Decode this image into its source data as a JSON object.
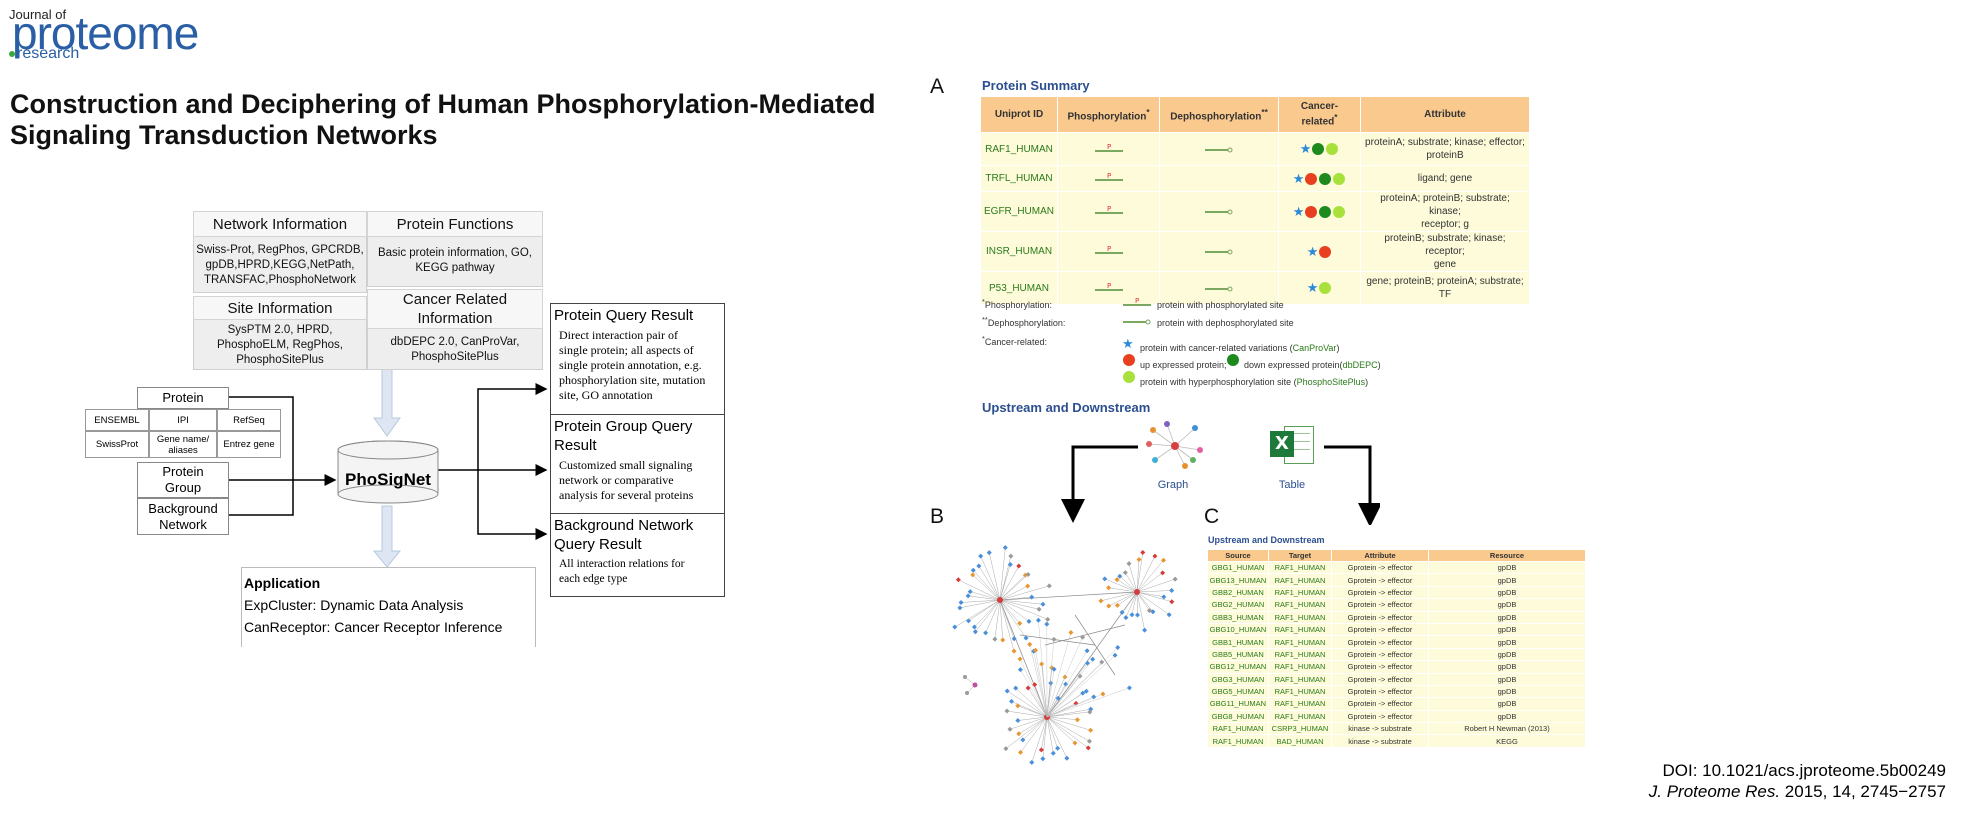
{
  "journal": {
    "top": "Journal of",
    "name": "proteome",
    "sub": "research"
  },
  "title_line1": "Construction and Deciphering of Human Phosphorylation-Mediated",
  "title_line2": "Signaling Transduction Networks",
  "doi_line": "DOI: 10.1021/acs.jproteome.5b00249",
  "citation": {
    "journal": "J. Proteome Res.",
    "rest": " 2015, 14, 2745−2757"
  },
  "diagram": {
    "network_info": {
      "title": "Network Information",
      "lines": [
        "Swiss-Prot, RegPhos, GPCRDB,",
        "gpDB,HPRD,KEGG,NetPath,",
        "TRANSFAC,PhosphoNetwork"
      ]
    },
    "protein_functions": {
      "title": "Protein Functions",
      "lines": [
        "Basic protein information, GO,",
        "KEGG pathway"
      ]
    },
    "site_info": {
      "title": "Site Information",
      "lines": [
        "SysPTM 2.0, HPRD,",
        "PhosphoELM, RegPhos,",
        "PhosphoSitePlus"
      ]
    },
    "cancer_info": {
      "title_l1": "Cancer Related",
      "title_l2": "Information",
      "lines": [
        "dbDEPC 2.0, CanProVar,",
        "PhosphoSitePlus"
      ]
    },
    "protein": "Protein",
    "id_cells": [
      "ENSEMBL",
      "IPI",
      "RefSeq",
      "SwissProt",
      "Gene name/\naliases",
      "Entrez gene"
    ],
    "protein_group": [
      "Protein",
      "Group"
    ],
    "background_network": [
      "Background",
      "Network"
    ],
    "db_name": "PhoSigNet",
    "results": [
      {
        "head": [
          "Protein Query Result"
        ],
        "text": [
          "Direct interaction pair of",
          "single protein; all aspects of",
          "single protein annotation, e.g.",
          "phosphorylation site, mutation",
          "site, GO annotation"
        ]
      },
      {
        "head": [
          "Protein Group Query",
          "Result"
        ],
        "text": [
          "Customized small signaling",
          "network or comparative",
          "analysis for several proteins"
        ]
      },
      {
        "head": [
          "Background Network",
          "Query Result"
        ],
        "text": [
          "All interaction relations for",
          "each edge type"
        ]
      }
    ],
    "application": {
      "title": "Application",
      "items": [
        "ExpCluster: Dynamic Data Analysis",
        "CanReceptor: Cancer Receptor Inference"
      ]
    }
  },
  "panelA": {
    "label": "A",
    "title": "Protein Summary",
    "headers": [
      "Uniprot ID",
      "Phosphorylation",
      "Dephosphorylation",
      "Cancer-\nrelated",
      "Attribute"
    ],
    "header_marks": [
      "*",
      "**",
      "*"
    ],
    "rows": [
      {
        "id": "RAF1_HUMAN",
        "phos": true,
        "dephos": true,
        "icons": [
          "star",
          "dgreen",
          "lgreen"
        ],
        "attr": "proteinA; substrate; kinase; effector;\nproteinB"
      },
      {
        "id": "TRFL_HUMAN",
        "phos": true,
        "dephos": false,
        "icons": [
          "star",
          "red",
          "dgreen",
          "lgreen"
        ],
        "attr": "ligand; gene"
      },
      {
        "id": "EGFR_HUMAN",
        "phos": true,
        "dephos": true,
        "icons": [
          "star",
          "red",
          "dgreen",
          "lgreen"
        ],
        "attr": "proteinA; proteinB; substrate; kinase;\nreceptor; g"
      },
      {
        "id": "INSR_HUMAN",
        "phos": true,
        "dephos": true,
        "icons": [
          "star",
          "red"
        ],
        "attr": "proteinB; substrate; kinase; receptor;\ngene"
      },
      {
        "id": "P53_HUMAN",
        "phos": true,
        "dephos": true,
        "icons": [
          "star",
          "lgreen"
        ],
        "attr": "gene; proteinB; proteinA; substrate;\nTF"
      }
    ],
    "legend": {
      "phos_label": "Phosphorylation:",
      "phos_desc": "protein with phosphorylated site",
      "dephos_label": "Dephosphorylation:",
      "dephos_desc": "protein with dephosphorylated site",
      "cancer_label": "Cancer-related:",
      "c1": "protein with cancer-related variations (",
      "c1_src": "CanProVar",
      "c2a": "up expressed protein;",
      "c2b": "down expressed protein(",
      "c2_src": "dbDEPC",
      "c3": "protein with hyperphosphorylation site (",
      "c3_src": "PhosphoSitePlus"
    },
    "ud_title": "Upstream and Downstream",
    "graph_label": "Graph",
    "table_label": "Table"
  },
  "panelB": {
    "label": "B"
  },
  "panelC": {
    "label": "C",
    "title": "Upstream and Downstream",
    "headers": [
      "Source",
      "Target",
      "Attribute",
      "Resource"
    ],
    "rows": [
      [
        "GBG1_HUMAN",
        "RAF1_HUMAN",
        "Gprotein -> effector",
        "gpDB"
      ],
      [
        "GBG13_HUMAN",
        "RAF1_HUMAN",
        "Gprotein -> effector",
        "gpDB"
      ],
      [
        "GBB2_HUMAN",
        "RAF1_HUMAN",
        "Gprotein -> effector",
        "gpDB"
      ],
      [
        "GBG2_HUMAN",
        "RAF1_HUMAN",
        "Gprotein -> effector",
        "gpDB"
      ],
      [
        "GBB3_HUMAN",
        "RAF1_HUMAN",
        "Gprotein -> effector",
        "gpDB"
      ],
      [
        "GBG10_HUMAN",
        "RAF1_HUMAN",
        "Gprotein -> effector",
        "gpDB"
      ],
      [
        "GBB1_HUMAN",
        "RAF1_HUMAN",
        "Gprotein -> effector",
        "gpDB"
      ],
      [
        "GBB5_HUMAN",
        "RAF1_HUMAN",
        "Gprotein -> effector",
        "gpDB"
      ],
      [
        "GBG12_HUMAN",
        "RAF1_HUMAN",
        "Gprotein -> effector",
        "gpDB"
      ],
      [
        "GBG3_HUMAN",
        "RAF1_HUMAN",
        "Gprotein -> effector",
        "gpDB"
      ],
      [
        "GBG5_HUMAN",
        "RAF1_HUMAN",
        "Gprotein -> effector",
        "gpDB"
      ],
      [
        "GBG11_HUMAN",
        "RAF1_HUMAN",
        "Gprotein -> effector",
        "gpDB"
      ],
      [
        "GBG8_HUMAN",
        "RAF1_HUMAN",
        "Gprotein -> effector",
        "gpDB"
      ],
      [
        "RAF1_HUMAN",
        "CSRP3_HUMAN",
        "kinase -> substrate",
        "Robert H Newman (2013)"
      ],
      [
        "RAF1_HUMAN",
        "BAD_HUMAN",
        "kinase -> substrate",
        "KEGG"
      ]
    ]
  },
  "colors": {
    "brand": "#2a5fa6",
    "header_orange": "#f9c98e",
    "row_yellow": "#fdfbd9",
    "id_green": "#2a7a1a",
    "section_blue": "#2b4f8f"
  }
}
